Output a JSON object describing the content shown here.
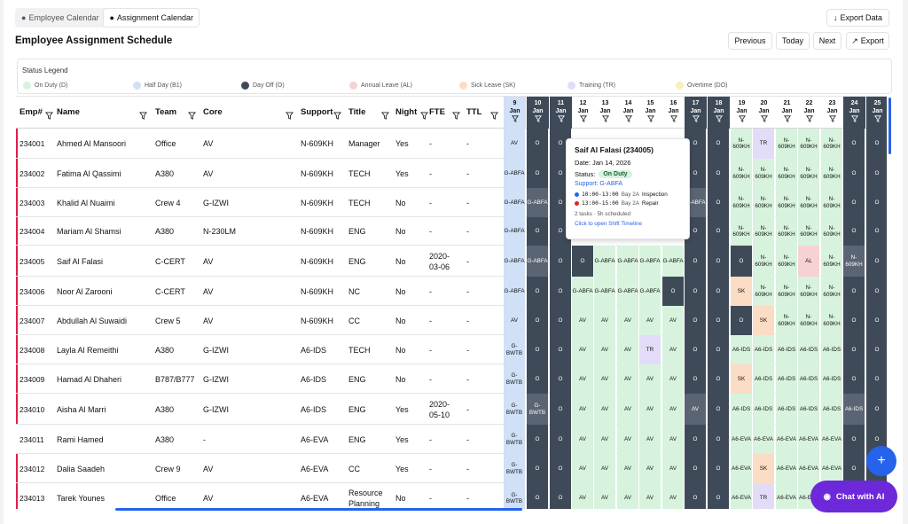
{
  "tabs": {
    "employee": "Employee Calendar",
    "assignment": "Assignment Calendar"
  },
  "header": {
    "export_data": "Export Data",
    "title": "Employee Assignment Schedule",
    "previous": "Previous",
    "today": "Today",
    "next": "Next",
    "export": "Export"
  },
  "legend": {
    "title": "Status Legend",
    "items": [
      {
        "label": "On Duty (D)",
        "color": "#d7f3dd"
      },
      {
        "label": "Half Day (B1)",
        "color": "#cfe0f7"
      },
      {
        "label": "Day Off (O)",
        "color": "#3f4a58"
      },
      {
        "label": "Annual Leave (AL)",
        "color": "#f8d2d2"
      },
      {
        "label": "Sick Leave (SK)",
        "color": "#fbdcc4"
      },
      {
        "label": "Training (TR)",
        "color": "#e3dcf8"
      },
      {
        "label": "Overtime (DO)",
        "color": "#faf0b8"
      }
    ]
  },
  "columns": [
    "Emp#",
    "Name",
    "Team",
    "Core",
    "Support",
    "Title",
    "Night",
    "FTE",
    "TTL"
  ],
  "days": [
    {
      "d": "9",
      "m": "Jan"
    },
    {
      "d": "10",
      "m": "Jan"
    },
    {
      "d": "11",
      "m": "Jan"
    },
    {
      "d": "12",
      "m": "Jan"
    },
    {
      "d": "13",
      "m": "Jan"
    },
    {
      "d": "14",
      "m": "Jan"
    },
    {
      "d": "15",
      "m": "Jan"
    },
    {
      "d": "16",
      "m": "Jan"
    },
    {
      "d": "17",
      "m": "Jan"
    },
    {
      "d": "18",
      "m": "Jan"
    },
    {
      "d": "19",
      "m": "Jan"
    },
    {
      "d": "20",
      "m": "Jan"
    },
    {
      "d": "21",
      "m": "Jan"
    },
    {
      "d": "22",
      "m": "Jan"
    },
    {
      "d": "23",
      "m": "Jan"
    },
    {
      "d": "24",
      "m": "Jan"
    },
    {
      "d": "25",
      "m": "Jan"
    }
  ],
  "rows": [
    {
      "emp": "234001",
      "name": "Ahmed Al Mansoori",
      "team": "Office",
      "core": "AV",
      "support": "N-609KH",
      "title": "Manager",
      "night": "Yes",
      "fte": "-",
      "ttl": "-",
      "days": [
        "AV",
        "O",
        "O",
        "",
        "",
        "",
        "",
        "",
        "O",
        "O",
        "N-609KH",
        "TR",
        "N-609KH",
        "N-609KH",
        "N-609KH",
        "O",
        "O"
      ]
    },
    {
      "emp": "234002",
      "name": "Fatima Al Qassimi",
      "team": "A380",
      "core": "AV",
      "support": "N-609KH",
      "title": "TECH",
      "night": "Yes",
      "fte": "-",
      "ttl": "-",
      "days": [
        "G-ABFA",
        "O",
        "O",
        "",
        "",
        "",
        "",
        "",
        "O",
        "O",
        "N-609KH",
        "N-609KH",
        "N-609KH",
        "N-609KH",
        "N-609KH",
        "O",
        "O"
      ]
    },
    {
      "emp": "234003",
      "name": "Khalid Al Nuaimi",
      "team": "Crew 4",
      "core": "G-IZWI",
      "support": "N-609KH",
      "title": "TECH",
      "night": "No",
      "fte": "-",
      "ttl": "-",
      "days": [
        "G-ABFA",
        "G-ABFA",
        "O",
        "",
        "",
        "",
        "",
        "",
        "G-ABFA",
        "O",
        "N-609KH",
        "N-609KH",
        "N-609KH",
        "N-609KH",
        "N-609KH",
        "O",
        "O"
      ]
    },
    {
      "emp": "234004",
      "name": "Mariam Al Shamsi",
      "team": "A380",
      "core": "N-230LM",
      "support": "N-609KH",
      "title": "ENG",
      "night": "No",
      "fte": "-",
      "ttl": "-",
      "days": [
        "G-ABFA",
        "O",
        "O",
        "",
        "",
        "",
        "",
        "",
        "O",
        "O",
        "N-609KH",
        "N-609KH",
        "N-609KH",
        "N-609KH",
        "N-609KH",
        "O",
        "O"
      ]
    },
    {
      "emp": "234005",
      "name": "Saif Al Falasi",
      "team": "C-CERT",
      "core": "AV",
      "support": "N-609KH",
      "title": "ENG",
      "night": "No",
      "fte": "2020-03-06",
      "ttl": "-",
      "days": [
        "G-ABFA",
        "G-ABFA",
        "O",
        "O",
        "G-ABFA",
        "G-ABFA",
        "G-ABFA",
        "G-ABFA",
        "O",
        "O",
        "O",
        "N-609KH",
        "N-609KH",
        "AL",
        "N-609KH",
        "N-609KH",
        "O"
      ]
    },
    {
      "emp": "234006",
      "name": "Noor Al Zarooni",
      "team": "C-CERT",
      "core": "AV",
      "support": "N-609KH",
      "title": "NC",
      "night": "No",
      "fte": "-",
      "ttl": "-",
      "days": [
        "G-ABFA",
        "O",
        "O",
        "G-ABFA",
        "G-ABFA",
        "G-ABFA",
        "G-ABFA",
        "O",
        "O",
        "O",
        "SK",
        "N-609KH",
        "N-609KH",
        "N-609KH",
        "N-609KH",
        "O",
        "O"
      ]
    },
    {
      "emp": "234007",
      "name": "Abdullah Al Suwaidi",
      "team": "Crew 5",
      "core": "AV",
      "support": "N-609KH",
      "title": "CC",
      "night": "No",
      "fte": "-",
      "ttl": "-",
      "days": [
        "AV",
        "O",
        "O",
        "AV",
        "AV",
        "AV",
        "AV",
        "AV",
        "O",
        "O",
        "O",
        "SK",
        "N-609KH",
        "N-609KH",
        "N-609KH",
        "O",
        "O"
      ]
    },
    {
      "emp": "234008",
      "name": "Layla Al Remeithi",
      "team": "A380",
      "core": "G-IZWI",
      "support": "A6-IDS",
      "title": "TECH",
      "night": "No",
      "fte": "-",
      "ttl": "-",
      "days": [
        "G-BWTB",
        "O",
        "O",
        "AV",
        "AV",
        "AV",
        "TR",
        "AV",
        "O",
        "O",
        "A6-IDS",
        "A6-IDS",
        "A6-IDS",
        "A6-IDS",
        "A6-IDS",
        "O",
        "O"
      ]
    },
    {
      "emp": "234009",
      "name": "Hamad Al Dhaheri",
      "team": "B787/B777",
      "core": "G-IZWI",
      "support": "A6-IDS",
      "title": "ENG",
      "night": "No",
      "fte": "-",
      "ttl": "-",
      "days": [
        "G-BWTB",
        "O",
        "O",
        "AV",
        "AV",
        "AV",
        "AV",
        "AV",
        "O",
        "O",
        "SK",
        "A6-IDS",
        "A6-IDS",
        "A6-IDS",
        "A6-IDS",
        "O",
        "O"
      ]
    },
    {
      "emp": "234010",
      "name": "Aisha Al Marri",
      "team": "A380",
      "core": "G-IZWI",
      "support": "A6-IDS",
      "title": "ENG",
      "night": "Yes",
      "fte": "2020-05-10",
      "ttl": "-",
      "days": [
        "G-BWTB",
        "G-BWTB",
        "O",
        "AV",
        "AV",
        "AV",
        "AV",
        "AV",
        "AV",
        "O",
        "A6-IDS",
        "A6-IDS",
        "A6-IDS",
        "A6-IDS",
        "A6-IDS",
        "A6-IDS",
        "O"
      ]
    },
    {
      "emp": "234011",
      "name": "Rami Hamed",
      "team": "A380",
      "core": "-",
      "support": "A6-EVA",
      "title": "ENG",
      "night": "Yes",
      "fte": "-",
      "ttl": "-",
      "days": [
        "G-BWTB",
        "O",
        "O",
        "AV",
        "AV",
        "AV",
        "AV",
        "AV",
        "O",
        "O",
        "A6-EVA",
        "A6-EVA",
        "A6-EVA",
        "A6-EVA",
        "A6-EVA",
        "O",
        "O"
      ]
    },
    {
      "emp": "234012",
      "name": "Dalia Saadeh",
      "team": "Crew 9",
      "core": "AV",
      "support": "A6-EVA",
      "title": "CC",
      "night": "Yes",
      "fte": "-",
      "ttl": "-",
      "days": [
        "G-BWTB",
        "O",
        "O",
        "AV",
        "AV",
        "AV",
        "AV",
        "AV",
        "O",
        "O",
        "A6-EVA",
        "SK",
        "A6-EVA",
        "A6-EVA",
        "A6-EVA",
        "O",
        "O"
      ]
    },
    {
      "emp": "234013",
      "name": "Tarek Younes",
      "team": "Office",
      "core": "AV",
      "support": "A6-EVA",
      "title": "Resource Planning",
      "night": "No",
      "fte": "-",
      "ttl": "-",
      "days": [
        "G-BWTB",
        "O",
        "O",
        "AV",
        "AV",
        "AV",
        "AV",
        "AV",
        "O",
        "O",
        "A6-EVA",
        "TR",
        "A6-EVA",
        "A6-EVA",
        "A6-EVA",
        "O",
        "O"
      ]
    }
  ],
  "tooltip": {
    "name": "Saif Al Falasi (234005)",
    "date": "Date: Jan 14, 2026",
    "status_label": "Status:",
    "status": "On Duty",
    "support": "Support: G-ABFA",
    "task1_time": "10:00-13:00",
    "task1_bay": "Bay 2A",
    "task1_name": "Inspection",
    "task2_time": "13:00-15:00",
    "task2_bay": "Bay 2A",
    "task2_name": "Repair",
    "summary": "2 tasks · 5h scheduled",
    "link": "Click to open Shift Timeline"
  },
  "chat": {
    "label": "Chat with AI"
  },
  "colors": {
    "accent": "#2563eb",
    "on_duty": "#d7f3dd",
    "half": "#cfe0f7",
    "off": "#3f4a58",
    "al": "#f8d2d2",
    "sk": "#fbdcc4",
    "tr": "#e3dcf8",
    "ot": "#faf0b8"
  }
}
